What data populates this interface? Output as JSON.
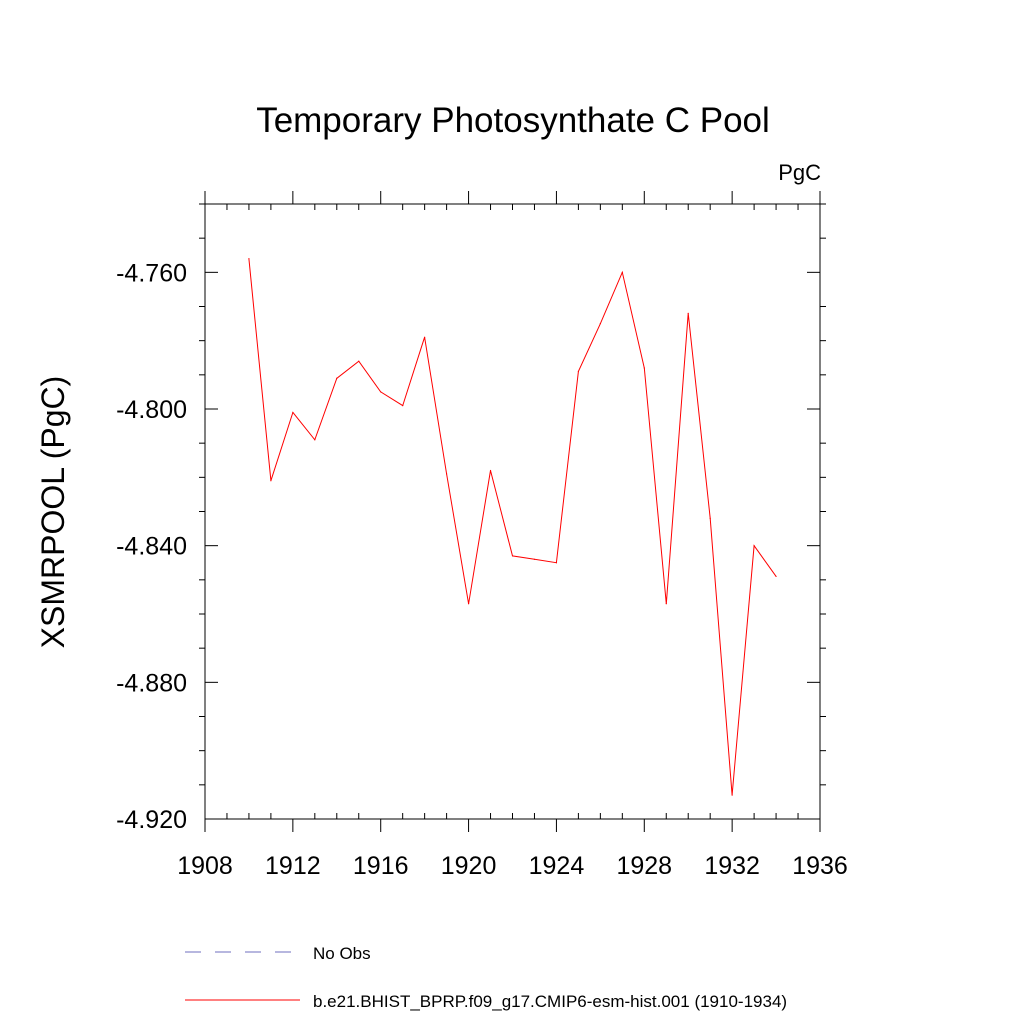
{
  "chart_data": {
    "type": "line",
    "title": "Temporary Photosynthate C Pool",
    "units_label": "PgC",
    "xlabel": "",
    "ylabel": "XSMRPOOL  (PgC)",
    "xlim": [
      1908,
      1936
    ],
    "ylim": [
      -4.92,
      -4.74
    ],
    "x_ticks": [
      1908,
      1912,
      1916,
      1920,
      1924,
      1928,
      1932,
      1936
    ],
    "x_tick_labels": [
      "1908",
      "1912",
      "1916",
      "1920",
      "1924",
      "1928",
      "1932",
      "1936"
    ],
    "y_ticks": [
      -4.76,
      -4.8,
      -4.84,
      -4.88,
      -4.92
    ],
    "y_tick_labels": [
      "-4.760",
      "-4.800",
      "-4.840",
      "-4.880",
      "-4.920"
    ],
    "series": [
      {
        "name": "b.e21.BHIST_BPRP.f09_g17.CMIP6-esm-hist.001 (1910-1934)",
        "color": "#ff0000",
        "x": [
          1910,
          1911,
          1912,
          1913,
          1914,
          1915,
          1916,
          1917,
          1918,
          1919,
          1920,
          1921,
          1922,
          1923,
          1924,
          1925,
          1926,
          1927,
          1928,
          1929,
          1930,
          1931,
          1932,
          1933,
          1934
        ],
        "y": [
          -4.756,
          -4.821,
          -4.801,
          -4.809,
          -4.791,
          -4.786,
          -4.795,
          -4.799,
          -4.779,
          -4.819,
          -4.857,
          -4.818,
          -4.843,
          -4.844,
          -4.845,
          -4.789,
          -4.775,
          -4.76,
          -4.788,
          -4.857,
          -4.772,
          -4.832,
          -4.913,
          -4.84,
          -4.849
        ]
      }
    ],
    "legend": [
      {
        "label": "No Obs",
        "color": "#6f6fbf",
        "style": "dashed"
      },
      {
        "label": "b.e21.BHIST_BPRP.f09_g17.CMIP6-esm-hist.001 (1910-1934)",
        "color": "#ff0000",
        "style": "solid"
      }
    ]
  }
}
